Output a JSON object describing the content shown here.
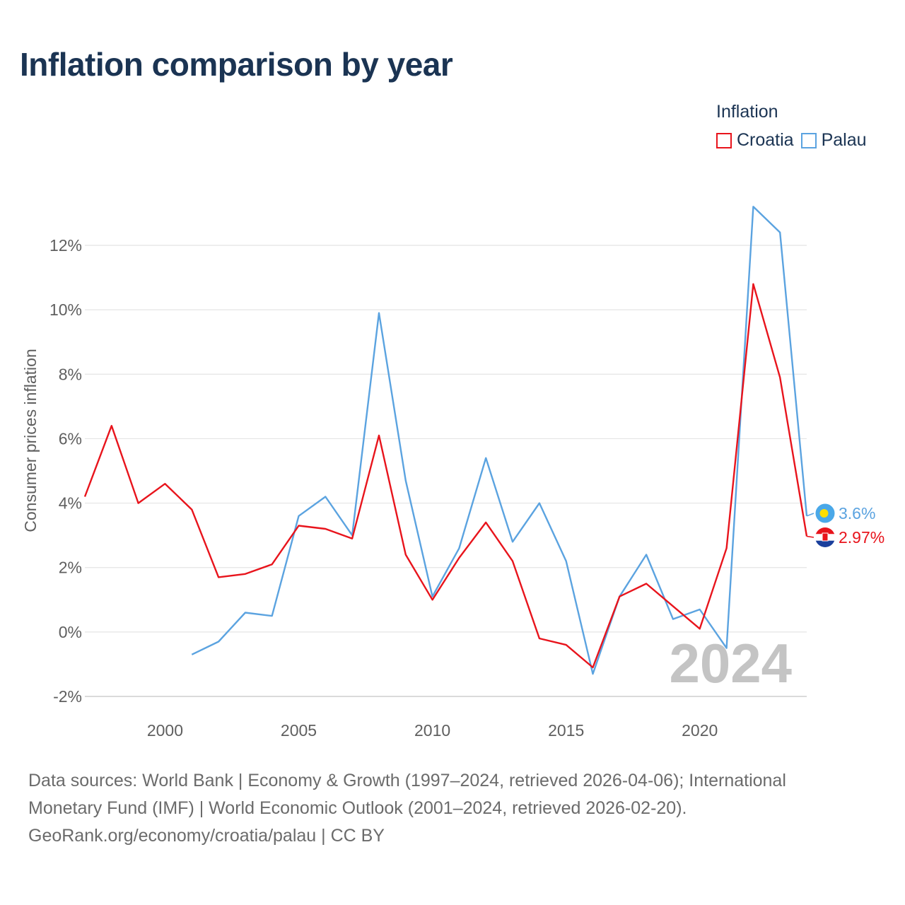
{
  "title": "Inflation comparison by year",
  "legend": {
    "title": "Inflation",
    "items": [
      {
        "name": "Croatia",
        "color": "#e8141c"
      },
      {
        "name": "Palau",
        "color": "#5ba3e0"
      }
    ]
  },
  "footer": {
    "line1": "Data sources: World Bank | Economy & Growth (1997–2024, retrieved 2026-04-06); International",
    "line2": "Monetary Fund (IMF) | World Economic Outlook (2001–2024, retrieved 2026-02-20).",
    "line3": "GeoRank.org/economy/croatia/palau | CC BY"
  },
  "chart_data": {
    "type": "line",
    "title": "Inflation comparison by year",
    "xlabel": "",
    "ylabel": "Consumer prices inflation",
    "xlim": [
      1997,
      2024
    ],
    "ylim": [
      -2.2,
      13.4
    ],
    "x_ticks": [
      2000,
      2005,
      2010,
      2015,
      2020
    ],
    "y_ticks": [
      -2,
      0,
      2,
      4,
      6,
      8,
      10,
      12
    ],
    "y_tick_labels": [
      "-2%",
      "0%",
      "2%",
      "4%",
      "6%",
      "8%",
      "10%",
      "12%"
    ],
    "grid": true,
    "legend_position": "top-right",
    "year_watermark": "2024",
    "series": [
      {
        "name": "Croatia",
        "color": "#e8141c",
        "end_label": "2.97%",
        "x": [
          1997,
          1998,
          1999,
          2000,
          2001,
          2002,
          2003,
          2004,
          2005,
          2006,
          2007,
          2008,
          2009,
          2010,
          2011,
          2012,
          2013,
          2014,
          2015,
          2016,
          2017,
          2018,
          2019,
          2020,
          2021,
          2022,
          2023,
          2024
        ],
        "values": [
          4.2,
          6.4,
          4.0,
          4.6,
          3.8,
          1.7,
          1.8,
          2.1,
          3.3,
          3.2,
          2.9,
          6.1,
          2.4,
          1.0,
          2.3,
          3.4,
          2.2,
          -0.2,
          -0.4,
          -1.1,
          1.1,
          1.5,
          0.8,
          0.1,
          2.6,
          10.8,
          7.9,
          2.97
        ]
      },
      {
        "name": "Palau",
        "color": "#5ba3e0",
        "end_label": "3.6%",
        "x": [
          2001,
          2002,
          2003,
          2004,
          2005,
          2006,
          2007,
          2008,
          2009,
          2010,
          2011,
          2012,
          2013,
          2014,
          2015,
          2016,
          2017,
          2018,
          2019,
          2020,
          2021,
          2022,
          2023,
          2024
        ],
        "values": [
          -0.7,
          -0.3,
          0.6,
          0.5,
          3.6,
          4.2,
          3.0,
          9.9,
          4.7,
          1.1,
          2.6,
          5.4,
          2.8,
          4.0,
          2.2,
          -1.3,
          1.1,
          2.4,
          0.4,
          0.7,
          -0.5,
          13.2,
          12.4,
          3.6
        ]
      }
    ]
  }
}
